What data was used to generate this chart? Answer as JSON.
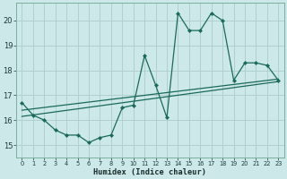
{
  "xlabel": "Humidex (Indice chaleur)",
  "background_color": "#cce8e8",
  "grid_color": "#b0d0d0",
  "line_color": "#1a6a5a",
  "x_ticks": [
    0,
    1,
    2,
    3,
    4,
    5,
    6,
    7,
    8,
    9,
    10,
    11,
    12,
    13,
    14,
    15,
    16,
    17,
    18,
    19,
    20,
    21,
    22,
    23
  ],
  "yticks": [
    15,
    16,
    17,
    18,
    19,
    20
  ],
  "ylim": [
    14.5,
    20.7
  ],
  "xlim": [
    -0.5,
    23.5
  ],
  "line1_x": [
    0,
    1,
    2,
    3,
    4,
    5,
    6,
    7,
    8,
    9,
    10,
    11,
    12,
    13,
    14,
    15,
    16,
    17,
    18,
    19,
    20,
    21,
    22,
    23
  ],
  "line1_y": [
    16.7,
    16.2,
    16.0,
    15.6,
    15.4,
    15.4,
    15.1,
    15.3,
    15.4,
    16.5,
    16.6,
    18.6,
    17.4,
    16.1,
    20.3,
    19.6,
    19.6,
    20.3,
    20.0,
    17.6,
    18.3,
    18.3,
    18.2,
    17.6
  ],
  "line2_x": [
    0,
    23
  ],
  "line2_y": [
    16.4,
    17.65
  ],
  "line3_x": [
    0,
    23
  ],
  "line3_y": [
    16.15,
    17.55
  ],
  "spine_color": "#7ab0a0",
  "tick_color": "#1a3a3a",
  "xlabel_color": "#1a2a2a"
}
